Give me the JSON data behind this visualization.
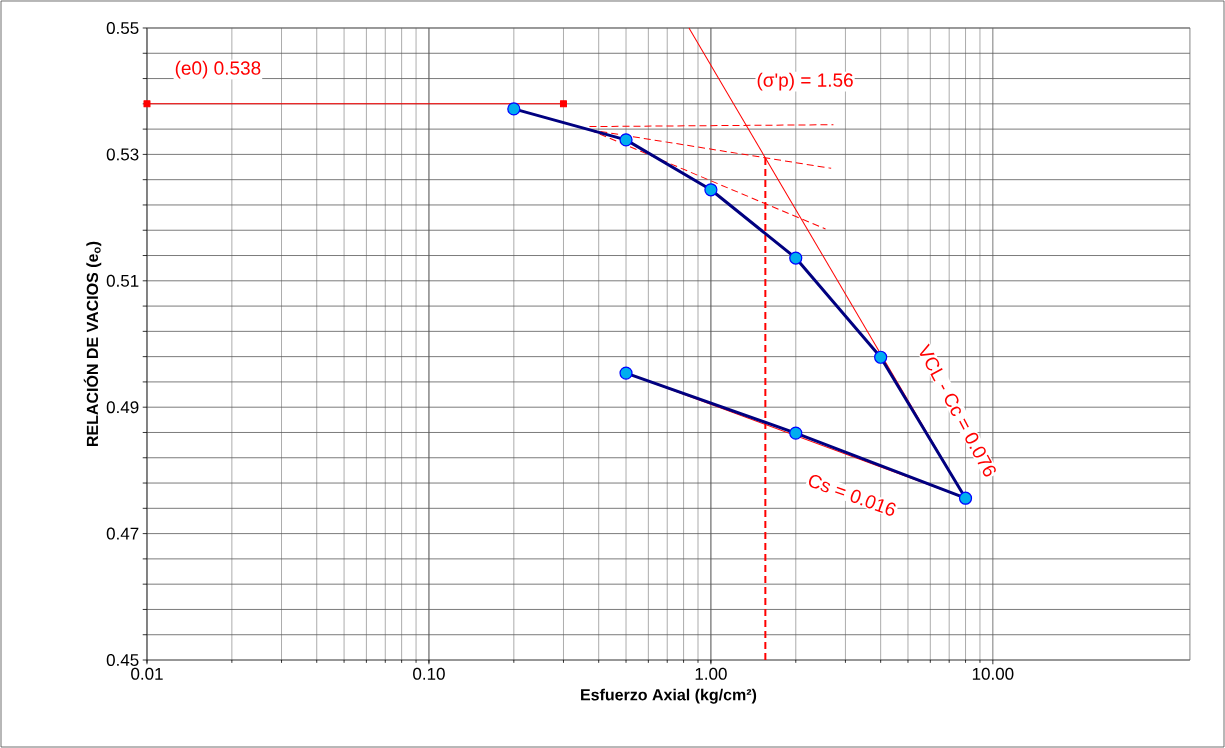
{
  "chart_data": {
    "type": "line",
    "xlabel": "Esfuerzo Axial (kg/cm²)",
    "ylabel": "RELACIÓN DE VACIOS (e$_{o}$)",
    "log": "x",
    "grid": true,
    "xlim": [
      0.01,
      50
    ],
    "ylim": [
      0.45,
      0.55
    ],
    "xticks": [
      {
        "value": 0.01,
        "label": "0.01"
      },
      {
        "value": 0.1,
        "label": "0.10"
      },
      {
        "value": 1,
        "label": "1.00"
      },
      {
        "value": 10,
        "label": "10.00"
      }
    ],
    "yticks": [
      {
        "value": 0.45,
        "label": "0.45"
      },
      {
        "value": 0.454,
        "label": null
      },
      {
        "value": 0.458,
        "label": null
      },
      {
        "value": 0.462,
        "label": null
      },
      {
        "value": 0.466,
        "label": null
      },
      {
        "value": 0.47,
        "label": "0.47"
      },
      {
        "value": 0.474,
        "label": null
      },
      {
        "value": 0.478,
        "label": null
      },
      {
        "value": 0.482,
        "label": null
      },
      {
        "value": 0.486,
        "label": null
      },
      {
        "value": 0.49,
        "label": "0.49"
      },
      {
        "value": 0.494,
        "label": null
      },
      {
        "value": 0.498,
        "label": null
      },
      {
        "value": 0.502,
        "label": null
      },
      {
        "value": 0.506,
        "label": null
      },
      {
        "value": 0.51,
        "label": "0.51"
      },
      {
        "value": 0.514,
        "label": null
      },
      {
        "value": 0.518,
        "label": null
      },
      {
        "value": 0.522,
        "label": null
      },
      {
        "value": 0.526,
        "label": null
      },
      {
        "value": 0.53,
        "label": "0.53"
      },
      {
        "value": 0.534,
        "label": null
      },
      {
        "value": 0.538,
        "label": null
      },
      {
        "value": 0.542,
        "label": null
      },
      {
        "value": 0.546,
        "label": null
      },
      {
        "value": 0.55,
        "label": "0.55"
      }
    ],
    "series": [
      {
        "color": "#ff0000",
        "x": [
          0.01,
          0.3
        ],
        "values": [
          0.538,
          0.538
        ],
        "marker": "square",
        "line_style": "solid"
      },
      {
        "color": "#ff0000",
        "x": [
          0.836,
          8.0
        ],
        "values": [
          0.55,
          0.4756
        ],
        "line_style": "solid"
      },
      {
        "color": "#ff0000",
        "x": [
          0.5,
          8.0
        ],
        "values": [
          0.4954,
          0.4756
        ],
        "line_style": "solid"
      },
      {
        "color": "#ff0000",
        "x": [
          0.371,
          2.72
        ],
        "values": [
          0.5344,
          0.5347
        ],
        "marker": "none",
        "line_style": "dashed"
      },
      {
        "color": "#ff0000",
        "x": [
          0.371,
          2.67
        ],
        "values": [
          0.5339,
          0.5278
        ],
        "marker": "none",
        "line_style": "dashed"
      },
      {
        "color": "#ff0000",
        "x": [
          0.371,
          2.55
        ],
        "values": [
          0.5339,
          0.5182
        ],
        "marker": "none",
        "line_style": "dashed"
      },
      {
        "color": "#ff0000",
        "x": [
          1.56,
          1.56
        ],
        "values": [
          0.45,
          0.5299
        ],
        "marker": "none",
        "line_style": "dashed"
      },
      {
        "color": "#000080",
        "x": [
          0.2,
          0.5,
          1.0,
          2.0,
          4.0,
          8.0,
          2.0,
          0.5
        ],
        "values": [
          0.5372,
          0.5323,
          0.5244,
          0.5136,
          0.4979,
          0.4756,
          0.4859,
          0.4954
        ],
        "marker": "circle",
        "line_style": "solid"
      }
    ],
    "annotations": [
      "(e0) 0.538",
      "(σ'p) = 1.56",
      "VCL  -  Cc = 0.076",
      "Cs = 0.016"
    ]
  }
}
